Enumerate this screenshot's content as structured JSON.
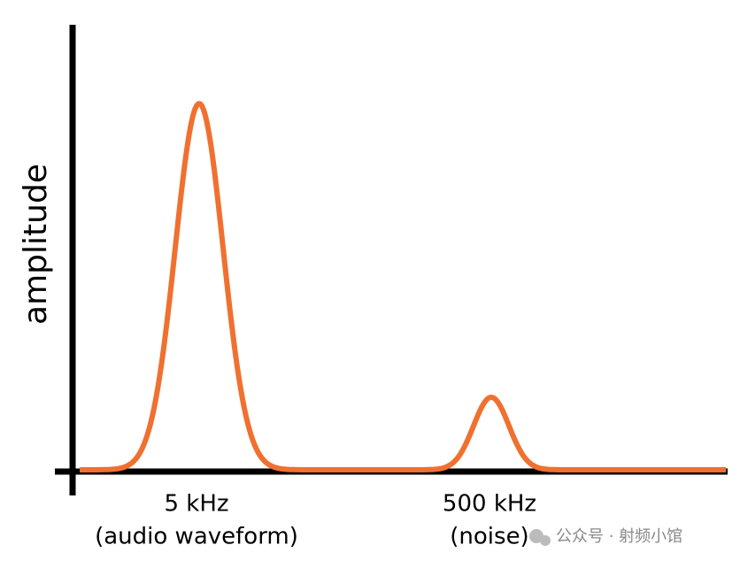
{
  "y_axis_label": "amplitude",
  "peaks": [
    {
      "label": "5 kHz",
      "sublabel": "(audio waveform)"
    },
    {
      "label": "500 kHz",
      "sublabel": "(noise)"
    }
  ],
  "watermark": "公众号 · 射频小馆"
}
